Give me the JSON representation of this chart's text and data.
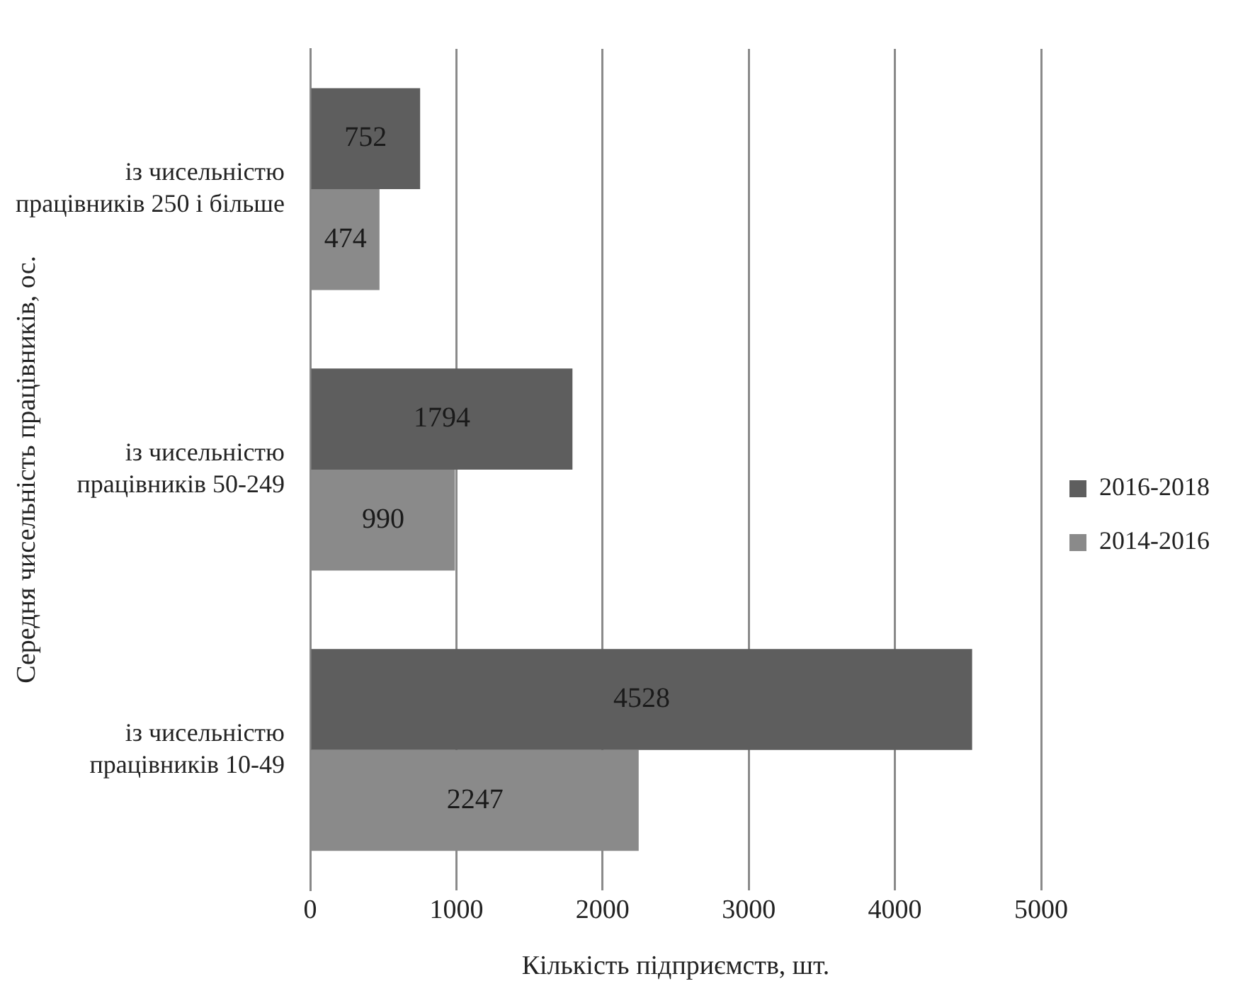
{
  "chart_data": {
    "type": "bar",
    "orientation": "horizontal",
    "categories": [
      "із чисельністю працівників 250 і більше",
      "із чисельністю працівників 50-249",
      "із чисельністю працівників 10-49"
    ],
    "series": [
      {
        "name": "2016-2018",
        "color": "#5e5e5e",
        "values": [
          752,
          1794,
          4528
        ]
      },
      {
        "name": "2014-2016",
        "color": "#8a8a8a",
        "values": [
          474,
          990,
          2247
        ]
      }
    ],
    "xlim": [
      0,
      5000
    ],
    "xticks": [
      0,
      1000,
      2000,
      3000,
      4000,
      5000
    ],
    "xlabel": "Кількість підприємств, шт.",
    "ylabel": "Середня чисельність працівників, ос.",
    "grid": "x",
    "legend": "right",
    "data_labels": true
  }
}
